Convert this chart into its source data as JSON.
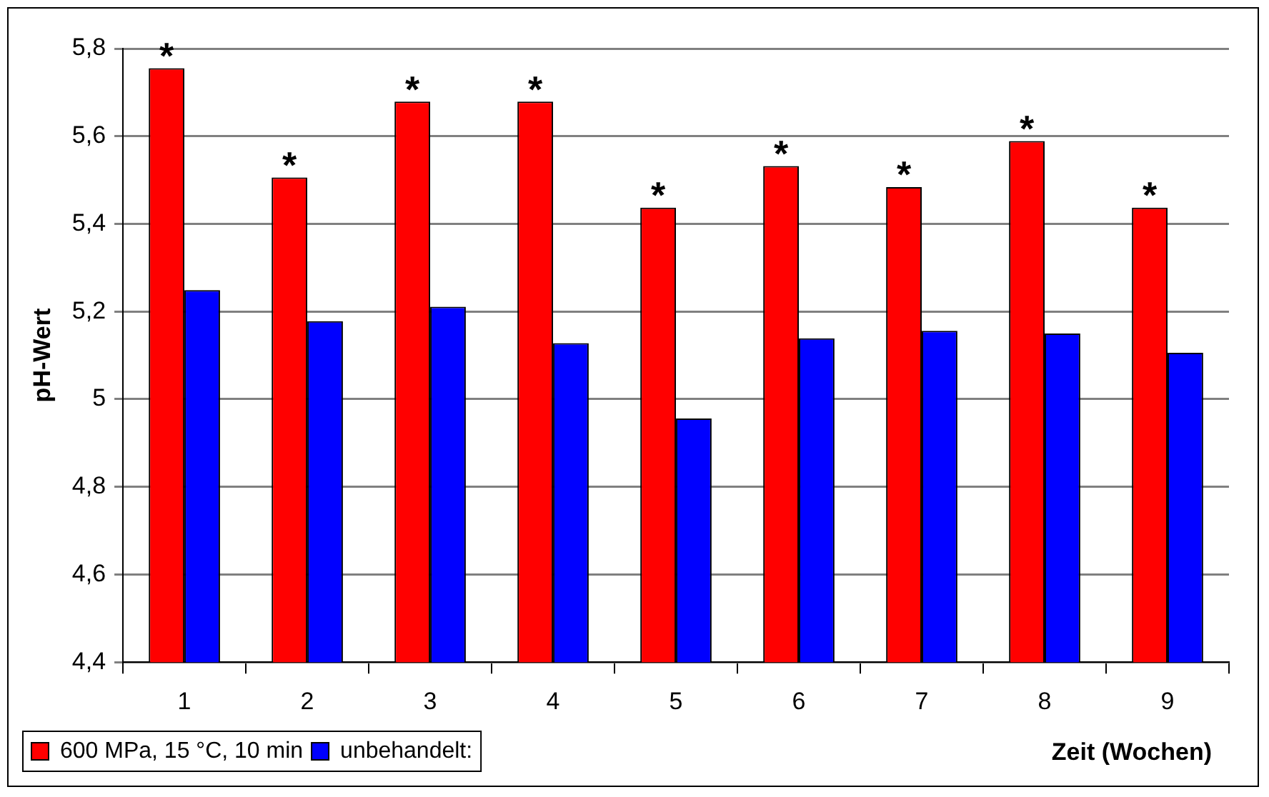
{
  "chart_data": {
    "type": "bar",
    "xlabel": "Zeit (Wochen)",
    "ylabel": "pH-Wert",
    "categories": [
      "1",
      "2",
      "3",
      "4",
      "5",
      "6",
      "7",
      "8",
      "9"
    ],
    "series": [
      {
        "name": "600 MPa, 15 °C, 10 min",
        "color": "#ff0000",
        "values": [
          5.755,
          5.506,
          5.679,
          5.679,
          5.437,
          5.532,
          5.484,
          5.589,
          5.437
        ]
      },
      {
        "name": "unbehandelt:",
        "color": "#0000ff",
        "values": [
          5.249,
          5.178,
          5.211,
          5.128,
          4.956,
          5.139,
          5.156,
          5.15,
          5.106
        ]
      }
    ],
    "ylim": [
      4.4,
      5.8
    ],
    "yticks": [
      {
        "value": 4.4,
        "label": "4,4"
      },
      {
        "value": 4.6,
        "label": "4,6"
      },
      {
        "value": 4.8,
        "label": "4,8"
      },
      {
        "value": 5,
        "label": "5"
      },
      {
        "value": 5.2,
        "label": "5,2"
      },
      {
        "value": 5.4,
        "label": "5,4"
      },
      {
        "value": 5.6,
        "label": "5,6"
      },
      {
        "value": 5.8,
        "label": "5,8"
      }
    ],
    "grid": "y",
    "legend": "bottom left",
    "annotations": [
      {
        "text": "*",
        "x": "1",
        "y": 5.755
      },
      {
        "text": "*",
        "x": "2",
        "y": 5.506
      },
      {
        "text": "*",
        "x": "3",
        "y": 5.679
      },
      {
        "text": "*",
        "x": "4",
        "y": 5.679
      },
      {
        "text": "*",
        "x": "5",
        "y": 5.437
      },
      {
        "text": "*",
        "x": "6",
        "y": 5.532
      },
      {
        "text": "*",
        "x": "7",
        "y": 5.484
      },
      {
        "text": "*",
        "x": "8",
        "y": 5.589
      },
      {
        "text": "*",
        "x": "9",
        "y": 5.437
      }
    ]
  }
}
